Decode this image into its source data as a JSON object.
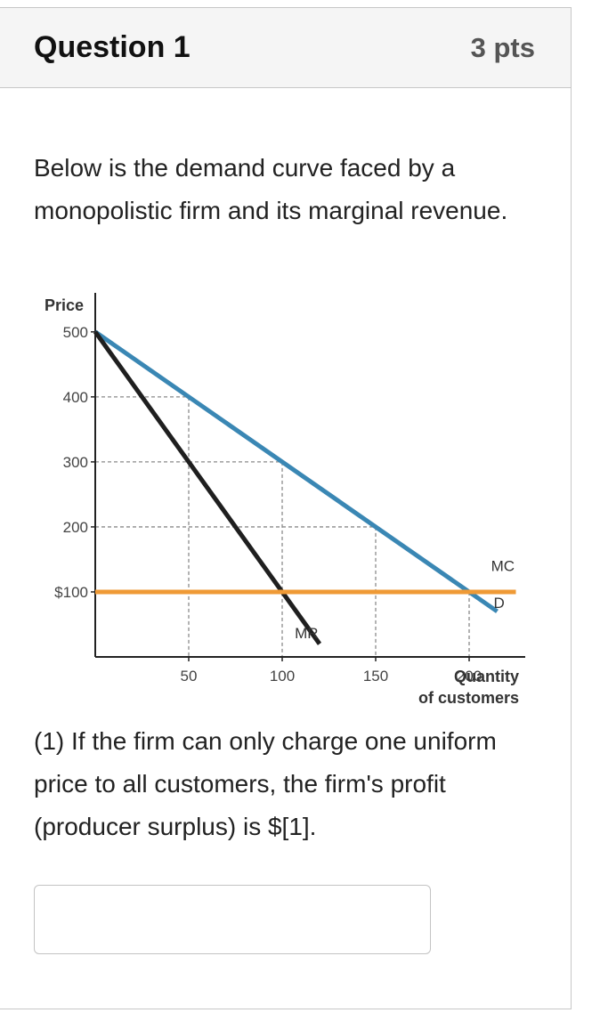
{
  "question": {
    "title": "Question 1",
    "points": "3 pts",
    "prompt": "Below is the demand curve faced by a monopolistic firm and its marginal revenue.",
    "part1": "(1) If the firm can only charge one uniform price to all customers, the firm's profit (producer surplus) is $[1]."
  },
  "answer": {
    "value": ""
  },
  "colors": {
    "demand": "#3a87b4",
    "mr": "#1f1f1f",
    "mc": "#ef9a36",
    "axis": "#222222",
    "guide": "#8a8a8a"
  },
  "chart_data": {
    "type": "line",
    "ylabel": "Price",
    "xlabel": "Quantity",
    "xlabel2": "of customers",
    "xlim": [
      0,
      230
    ],
    "ylim": [
      0,
      560
    ],
    "x_ticks": [
      {
        "value": 50,
        "label": "50"
      },
      {
        "value": 100,
        "label": "100"
      },
      {
        "value": 150,
        "label": "150"
      },
      {
        "value": 200,
        "label": "200"
      }
    ],
    "y_ticks": [
      {
        "value": 100,
        "label": "$100"
      },
      {
        "value": 200,
        "label": "200"
      },
      {
        "value": 300,
        "label": "300"
      },
      {
        "value": 400,
        "label": "400"
      },
      {
        "value": 500,
        "label": "500"
      }
    ],
    "series": [
      {
        "name": "D",
        "color": "#3a87b4",
        "points": [
          [
            0,
            500
          ],
          [
            215,
            70
          ]
        ]
      },
      {
        "name": "MR",
        "color": "#1f1f1f",
        "points": [
          [
            0,
            500
          ],
          [
            120,
            20
          ]
        ]
      },
      {
        "name": "MC",
        "color": "#ef9a36",
        "points": [
          [
            0,
            100
          ],
          [
            225,
            100
          ]
        ]
      }
    ],
    "guides": [
      {
        "x": 50,
        "y": 400
      },
      {
        "x": 100,
        "y": 300
      },
      {
        "x": 150,
        "y": 200
      },
      {
        "x": 200,
        "y": 100
      }
    ],
    "grid": false
  }
}
